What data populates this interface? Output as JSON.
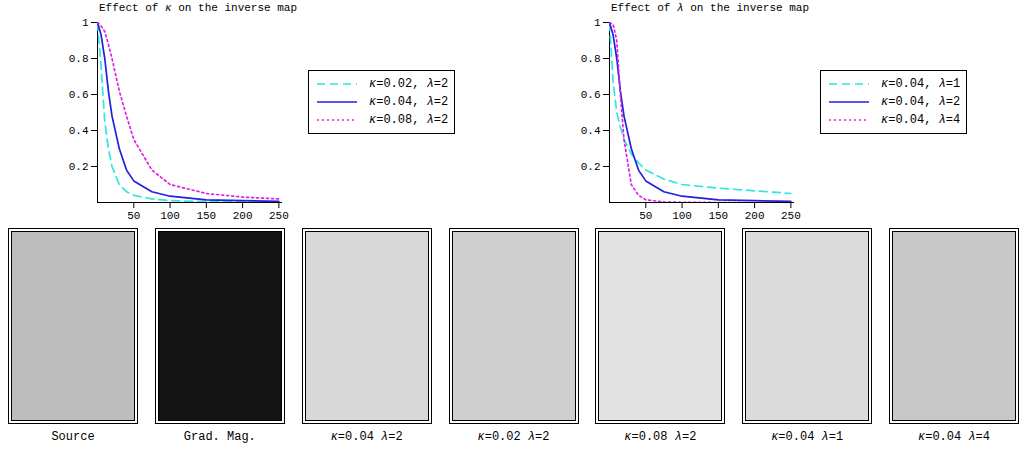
{
  "chart_data": [
    {
      "type": "line",
      "title": "Effect of κ on the inverse map",
      "xlim": [
        0,
        255
      ],
      "ylim": [
        0,
        1
      ],
      "xticks": [
        50,
        100,
        150,
        200,
        250
      ],
      "yticks": [
        0.2,
        0.4,
        0.6,
        0.8,
        1
      ],
      "legend": "upper right",
      "x": [
        0,
        5,
        10,
        15,
        20,
        30,
        40,
        50,
        75,
        100,
        150,
        200,
        250
      ],
      "series": [
        {
          "name": "κ=0.02, λ=2",
          "color": "#2ee6e6",
          "line_style": "dashed",
          "values": [
            1,
            0.75,
            0.45,
            0.3,
            0.2,
            0.1,
            0.06,
            0.04,
            0.02,
            0.01,
            0.005,
            0.003,
            0.002
          ]
        },
        {
          "name": "κ=0.04, λ=2",
          "color": "#2020dd",
          "line_style": "solid",
          "values": [
            1,
            0.93,
            0.8,
            0.62,
            0.48,
            0.3,
            0.18,
            0.12,
            0.06,
            0.035,
            0.015,
            0.01,
            0.006
          ]
        },
        {
          "name": "κ=0.08, λ=2",
          "color": "#e020e0",
          "line_style": "dotted",
          "values": [
            1,
            0.98,
            0.95,
            0.88,
            0.8,
            0.62,
            0.48,
            0.35,
            0.18,
            0.1,
            0.05,
            0.03,
            0.02
          ]
        }
      ]
    },
    {
      "type": "line",
      "title": "Effect of λ on the inverse map",
      "xlim": [
        0,
        255
      ],
      "ylim": [
        0,
        1
      ],
      "xticks": [
        50,
        100,
        150,
        200,
        250
      ],
      "yticks": [
        0.2,
        0.4,
        0.6,
        0.8,
        1
      ],
      "legend": "upper right",
      "x": [
        0,
        5,
        10,
        15,
        20,
        30,
        40,
        50,
        75,
        100,
        150,
        200,
        250
      ],
      "series": [
        {
          "name": "κ=0.04, λ=1",
          "color": "#2ee6e6",
          "line_style": "dashed",
          "values": [
            1,
            0.67,
            0.5,
            0.42,
            0.35,
            0.27,
            0.22,
            0.18,
            0.13,
            0.1,
            0.08,
            0.065,
            0.05
          ]
        },
        {
          "name": "κ=0.04, λ=2",
          "color": "#2020dd",
          "line_style": "solid",
          "values": [
            1,
            0.93,
            0.8,
            0.62,
            0.48,
            0.3,
            0.18,
            0.12,
            0.06,
            0.035,
            0.015,
            0.01,
            0.006
          ]
        },
        {
          "name": "κ=0.04, λ=4",
          "color": "#e020e0",
          "line_style": "dotted",
          "values": [
            1,
            0.99,
            0.9,
            0.6,
            0.35,
            0.1,
            0.04,
            0.015,
            0.003,
            0.001,
            0,
            0,
            0
          ]
        }
      ]
    }
  ],
  "image_strip": {
    "captions": [
      "Source",
      "Grad. Mag.",
      "κ=0.04 λ=2",
      "κ=0.02 λ=2",
      "κ=0.08 λ=2",
      "κ=0.04 λ=1",
      "κ=0.04 λ=4"
    ]
  }
}
